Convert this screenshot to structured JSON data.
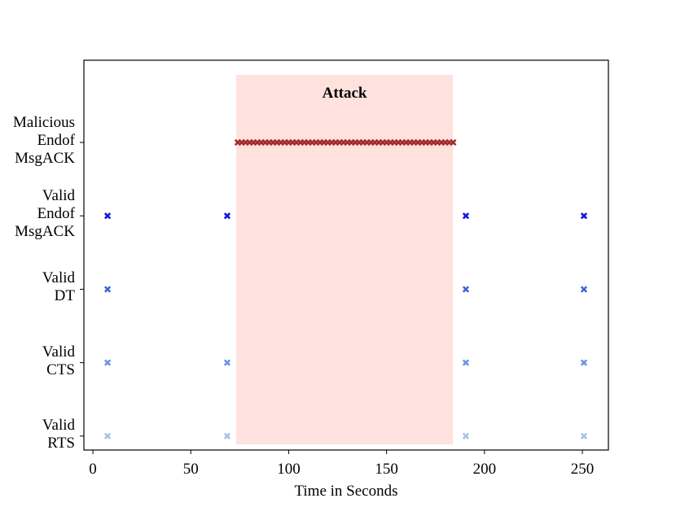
{
  "chart_data": {
    "type": "scatter",
    "annotation": "Attack",
    "attack_span": [
      73.2,
      183.9
    ],
    "attack_color": "#ffe1dd",
    "xlabel": "Time in Seconds",
    "xlim": [
      -4.6,
      263.3
    ],
    "xticks": [
      0,
      50,
      100,
      150,
      200,
      250
    ],
    "ylim": [
      -0.19,
      5.12
    ],
    "yticks": [
      {
        "value": 0,
        "label": "Valid\nRTS"
      },
      {
        "value": 1,
        "label": "Valid\nCTS"
      },
      {
        "value": 2,
        "label": "Valid\nDT"
      },
      {
        "value": 3,
        "label": "Valid\nEndof\nMsgACK"
      },
      {
        "value": 4,
        "label": "Malicious\nEndof\nMsgACK"
      }
    ],
    "grid": false,
    "series": [
      {
        "color": "#a8c2e8",
        "x": [
          7.5,
          68.6,
          190.5,
          250.8
        ],
        "y": [
          0,
          0,
          0,
          0
        ]
      },
      {
        "color": "#6b95e0",
        "x": [
          7.5,
          68.6,
          190.5,
          250.8
        ],
        "y": [
          1,
          1,
          1,
          1
        ]
      },
      {
        "color": "#3e67d6",
        "x": [
          7.5,
          190.5,
          250.8
        ],
        "y": [
          2,
          2,
          2
        ]
      },
      {
        "color": "#1414e0",
        "x": [
          7.5,
          68.6,
          190.5,
          250.8
        ],
        "y": [
          3,
          3,
          3,
          3
        ]
      },
      {
        "color": "#a32a2a",
        "x": [
          74,
          76,
          78,
          80,
          82,
          84,
          86,
          88,
          90,
          92,
          94,
          96,
          98,
          100,
          102,
          104,
          106,
          108,
          110,
          112,
          114,
          116,
          118,
          120,
          122,
          124,
          126,
          128,
          130,
          132,
          134,
          136,
          138,
          140,
          142,
          144,
          146,
          148,
          150,
          152,
          154,
          156,
          158,
          160,
          162,
          164,
          166,
          168,
          170,
          172,
          174,
          176,
          178,
          180,
          182,
          184
        ],
        "y": [
          4,
          4,
          4,
          4,
          4,
          4,
          4,
          4,
          4,
          4,
          4,
          4,
          4,
          4,
          4,
          4,
          4,
          4,
          4,
          4,
          4,
          4,
          4,
          4,
          4,
          4,
          4,
          4,
          4,
          4,
          4,
          4,
          4,
          4,
          4,
          4,
          4,
          4,
          4,
          4,
          4,
          4,
          4,
          4,
          4,
          4,
          4,
          4,
          4,
          4,
          4,
          4,
          4,
          4,
          4,
          4
        ]
      }
    ]
  }
}
